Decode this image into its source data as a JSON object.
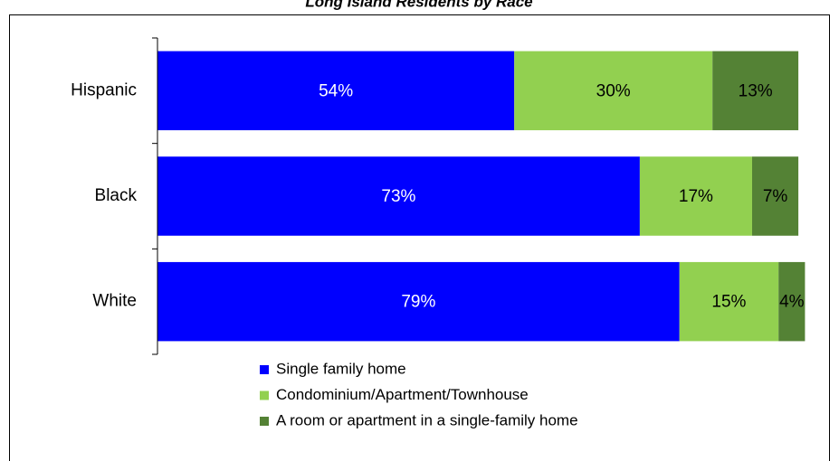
{
  "chart_data": {
    "type": "stacked-bar-horizontal",
    "title": "Long Island Residents by Race",
    "categories": [
      "Hispanic",
      "Black",
      "White"
    ],
    "series": [
      {
        "name": "Single family home",
        "color": "#0000ff",
        "label_color": "#ffffff",
        "values": [
          54,
          73,
          79
        ],
        "value_labels": [
          "54%",
          "73%",
          "79%"
        ]
      },
      {
        "name": "Condominium/Apartment/Townhouse",
        "color": "#92d050",
        "label_color": "#000000",
        "values": [
          30,
          17,
          15
        ],
        "value_labels": [
          "30%",
          "17%",
          "15%"
        ]
      },
      {
        "name": "A room or apartment in a single-family home",
        "color": "#548235",
        "label_color": "#000000",
        "values": [
          13,
          7,
          4
        ],
        "value_labels": [
          "13%",
          "7%",
          "4%"
        ]
      }
    ],
    "xlim": [
      0,
      100
    ]
  }
}
